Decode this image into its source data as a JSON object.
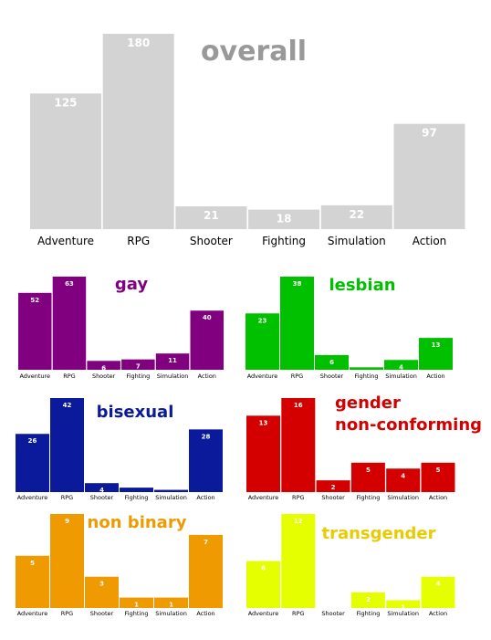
{
  "categories": [
    "Adventure",
    "RPG",
    "Shooter",
    "Fighting",
    "Simulation",
    "Action"
  ],
  "charts": [
    {
      "key": "overall",
      "title_lines": [
        "overall"
      ],
      "color": "#d3d3d3",
      "title_color": "#999999",
      "type": "bar",
      "values": [
        125,
        180,
        21,
        18,
        22,
        97
      ]
    },
    {
      "key": "gay",
      "title_lines": [
        "gay"
      ],
      "color": "#800080",
      "title_color": "#800080",
      "type": "bar",
      "values": [
        52,
        63,
        6,
        7,
        11,
        40
      ]
    },
    {
      "key": "lesbian",
      "title_lines": [
        "lesbian"
      ],
      "color": "#00c000",
      "title_color": "#00c000",
      "type": "bar",
      "values": [
        23,
        38,
        6,
        1,
        4,
        13
      ]
    },
    {
      "key": "bisexual",
      "title_lines": [
        "bisexual"
      ],
      "color": "#0a1a9a",
      "title_color": "#0a1a9a",
      "type": "bar",
      "values": [
        26,
        42,
        4,
        2,
        1,
        28
      ]
    },
    {
      "key": "gender_nonconforming",
      "title_lines": [
        "gender",
        "non-conforming"
      ],
      "color": "#d40000",
      "title_color": "#d40000",
      "type": "bar",
      "values": [
        13,
        16,
        2,
        5,
        4,
        5
      ]
    },
    {
      "key": "non_binary",
      "title_lines": [
        "non binary"
      ],
      "color": "#ee9a00",
      "title_color": "#ee9a00",
      "type": "bar",
      "values": [
        5,
        9,
        3,
        1,
        1,
        7
      ]
    },
    {
      "key": "transgender",
      "title_lines": [
        "transgender"
      ],
      "color": "#e6ff00",
      "title_color": "#e6cc00",
      "type": "bar",
      "values": [
        6,
        12,
        0,
        2,
        1,
        4
      ]
    }
  ]
}
